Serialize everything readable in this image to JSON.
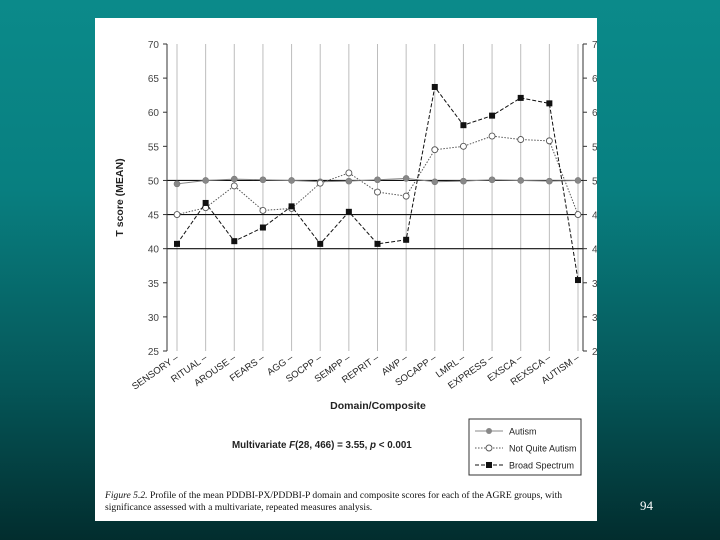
{
  "caption": {
    "label": "Figure 5.2.",
    "text": "Profile of the mean PDDBI-PX/PDDBI-P domain and composite scores for each of the AGRE groups, with significance assessed with a multivariate, repeated measures analysis."
  },
  "page_number": "94",
  "chart_data": {
    "type": "line",
    "xlabel": "Domain/Composite",
    "ylabel": "T score (MEAN)",
    "ylim": [
      25,
      70
    ],
    "yticks": [
      25,
      30,
      35,
      40,
      45,
      50,
      55,
      60,
      65,
      70
    ],
    "grid": true,
    "reference_lines": [
      40,
      45,
      50
    ],
    "categories": [
      "SENSORY",
      "RITUAL",
      "AROUSE",
      "FEARS",
      "AGG",
      "SOCPP",
      "SEMPP",
      "REPRIT",
      "AWP",
      "SOCAPP",
      "LMRL",
      "EXPRESS",
      "EXSCA",
      "REXSCA",
      "AUTISM"
    ],
    "series": [
      {
        "name": "Autism",
        "marker": "filled-circle",
        "line": "solid",
        "color": "#888888",
        "values": [
          49.5,
          50,
          50.2,
          50.1,
          50,
          49.8,
          49.9,
          50.1,
          50.3,
          49.8,
          49.9,
          50.1,
          50,
          49.9,
          50
        ]
      },
      {
        "name": "Not Quite Autism",
        "marker": "open-circle",
        "line": "dotted",
        "color": "#555555",
        "values": [
          45,
          46,
          49.2,
          45.6,
          45.9,
          49.6,
          51.1,
          48.3,
          47.7,
          54.5,
          55,
          56.5,
          56,
          55.8,
          45
        ]
      },
      {
        "name": "Broad Spectrum",
        "marker": "filled-square",
        "line": "dashed",
        "color": "#111111",
        "values": [
          40.7,
          46.7,
          41.1,
          43.1,
          46.2,
          40.7,
          45.4,
          40.7,
          41.3,
          63.7,
          58.1,
          59.5,
          62.1,
          61.3,
          35.4
        ]
      }
    ],
    "legend_position": "bottom-right",
    "annotation": {
      "prefix": "Multivariate",
      "stat": "F",
      "df": "(28, 466)",
      "eq": "= 3.55,",
      "p": "p",
      "p_value": "< 0.001"
    }
  }
}
